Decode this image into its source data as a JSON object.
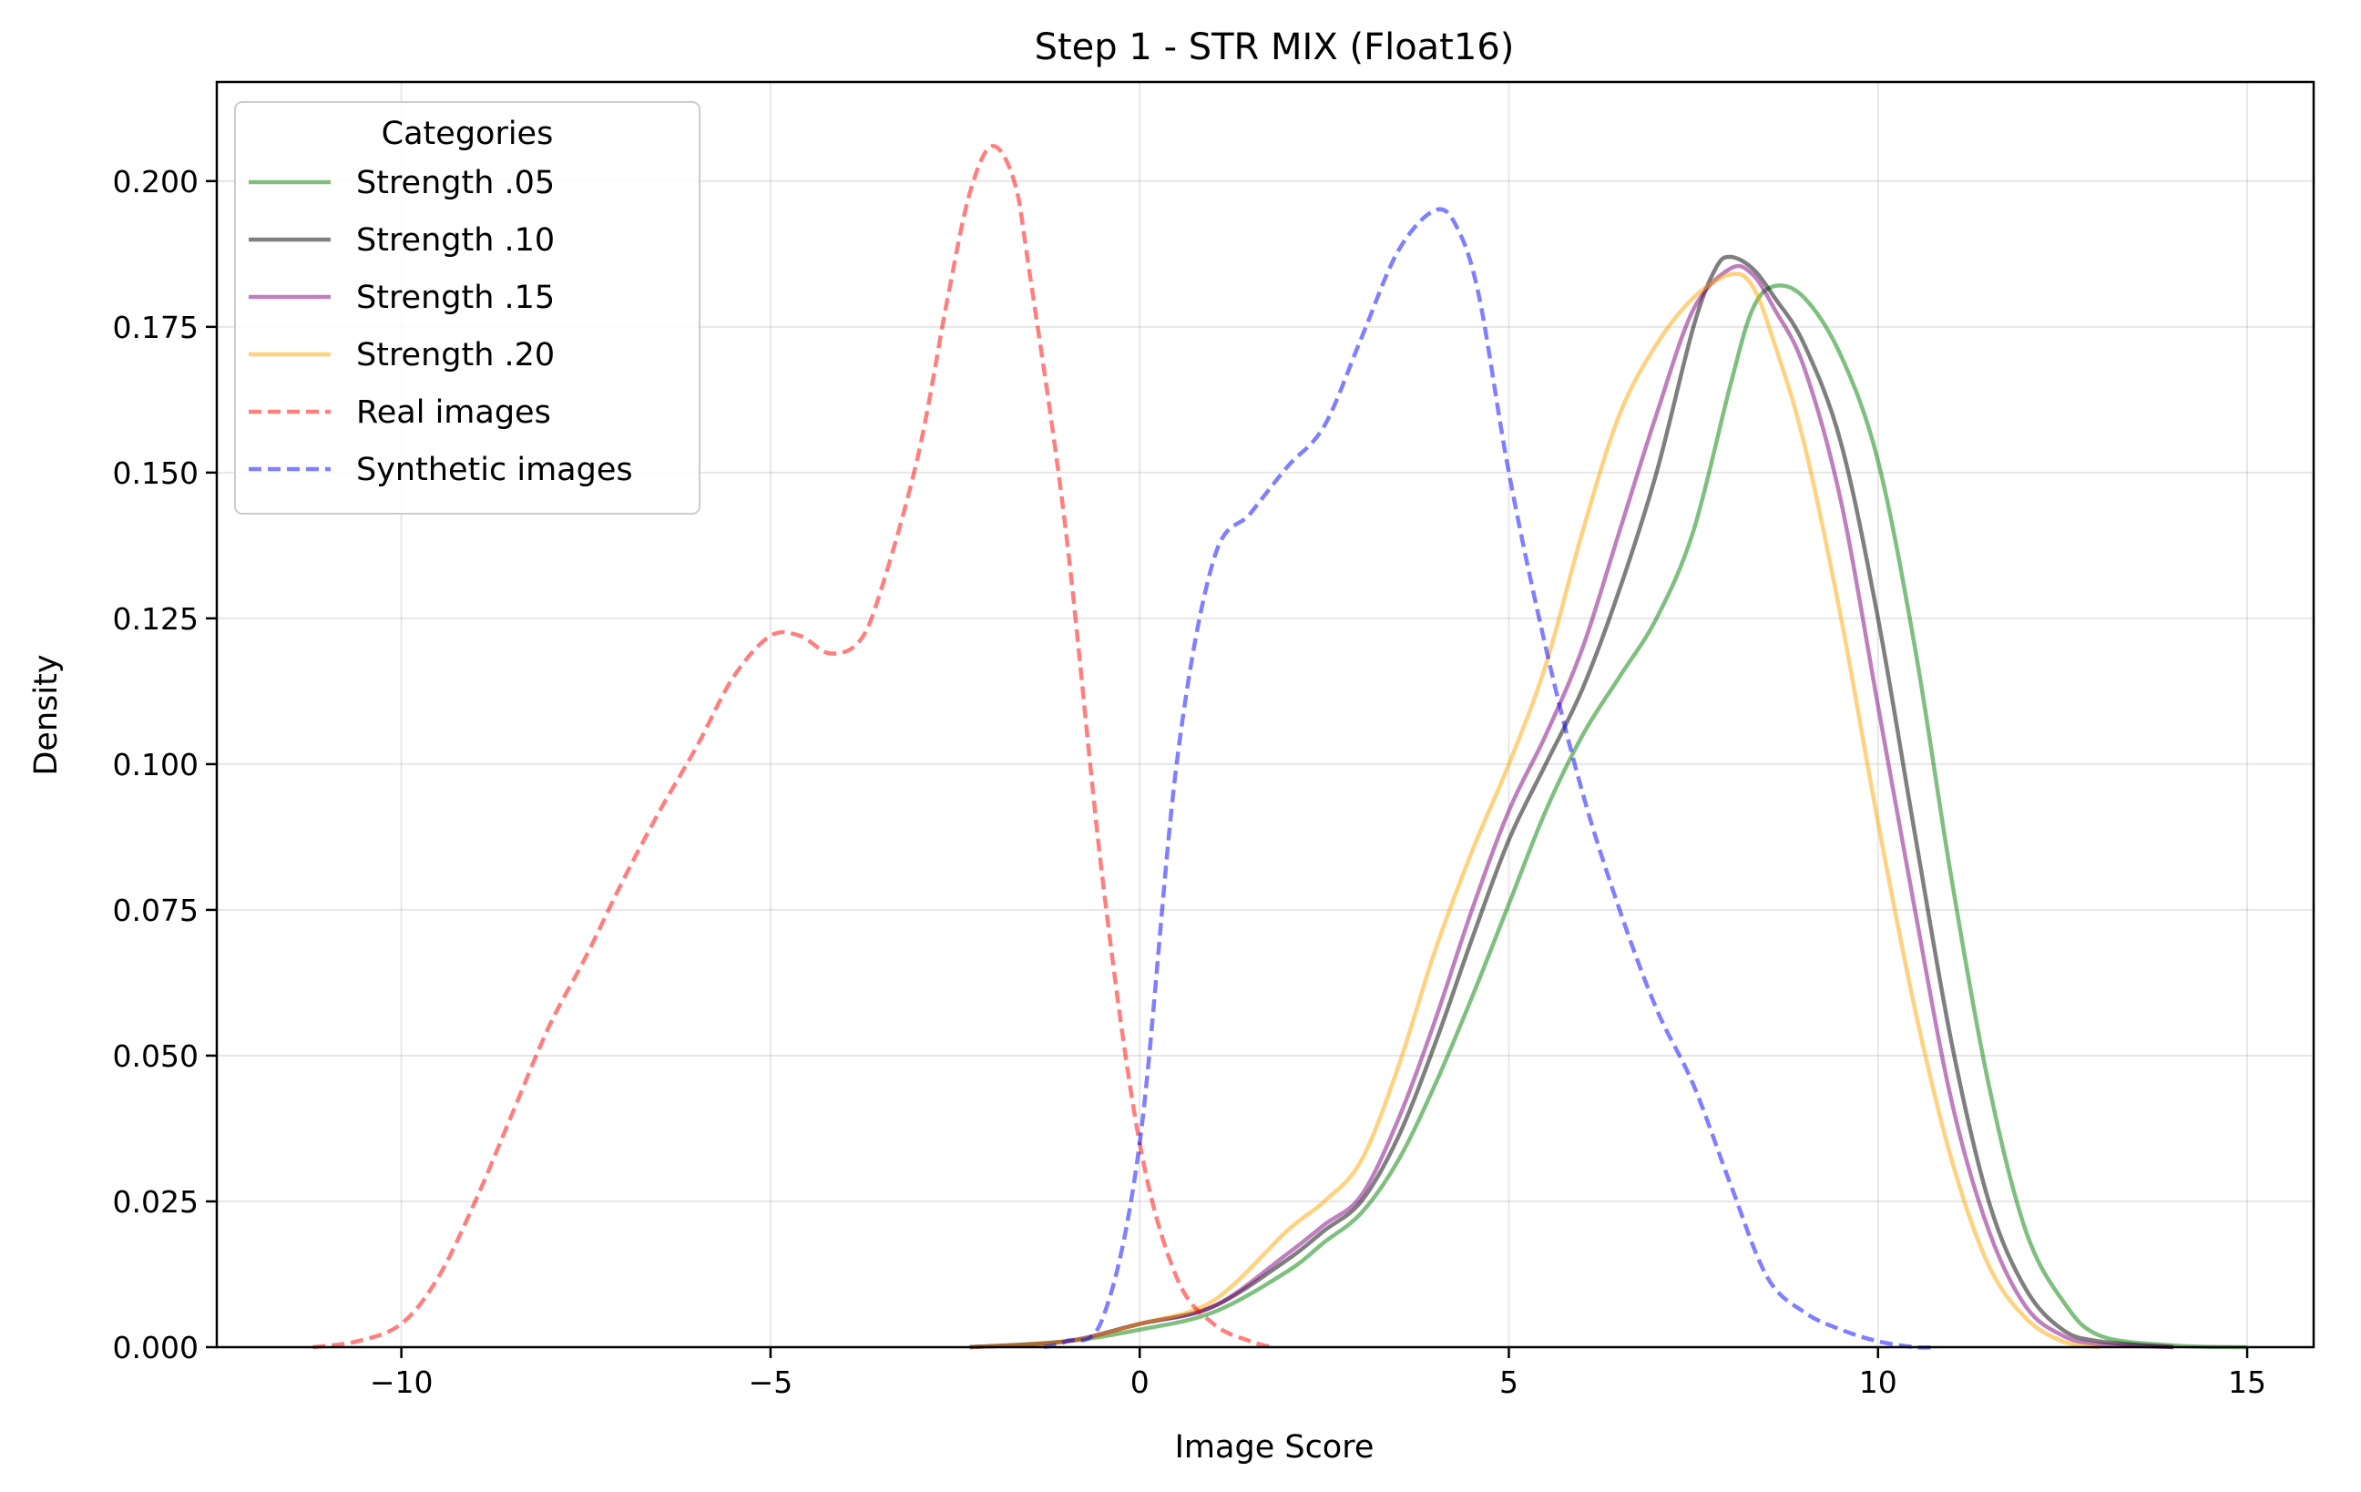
{
  "chart_data": {
    "type": "line",
    "title": "Step 1 - STR MIX (Float16)",
    "xlabel": "Image Score",
    "ylabel": "Density",
    "xlim": [
      -12.5,
      15.9
    ],
    "ylim": [
      0,
      0.217
    ],
    "xticks": [
      -10,
      -5,
      0,
      5,
      10,
      15
    ],
    "xtick_labels": [
      "−10",
      "−5",
      "0",
      "5",
      "10",
      "15"
    ],
    "yticks": [
      0,
      0.025,
      0.05,
      0.075,
      0.1,
      0.125,
      0.15,
      0.175,
      0.2
    ],
    "ytick_labels": [
      "0.000",
      "0.025",
      "0.050",
      "0.075",
      "0.100",
      "0.125",
      "0.150",
      "0.175",
      "0.200"
    ],
    "grid": true,
    "legend": {
      "title": "Categories",
      "position": "top-left"
    },
    "series": [
      {
        "name": "Strength .05",
        "color": "#008000",
        "style": "solid",
        "points": [
          [
            -2.3,
            0
          ],
          [
            -1,
            0.001
          ],
          [
            0,
            0.003
          ],
          [
            1,
            0.006
          ],
          [
            2,
            0.013
          ],
          [
            2.5,
            0.018
          ],
          [
            3,
            0.023
          ],
          [
            3.5,
            0.032
          ],
          [
            4,
            0.045
          ],
          [
            4.5,
            0.06
          ],
          [
            5,
            0.076
          ],
          [
            5.5,
            0.092
          ],
          [
            6,
            0.105
          ],
          [
            6.5,
            0.115
          ],
          [
            7,
            0.125
          ],
          [
            7.5,
            0.14
          ],
          [
            8,
            0.165
          ],
          [
            8.3,
            0.178
          ],
          [
            8.6,
            0.182
          ],
          [
            9,
            0.18
          ],
          [
            9.5,
            0.17
          ],
          [
            10,
            0.152
          ],
          [
            10.5,
            0.12
          ],
          [
            11,
            0.08
          ],
          [
            11.5,
            0.045
          ],
          [
            12,
            0.02
          ],
          [
            12.5,
            0.008
          ],
          [
            13,
            0.002
          ],
          [
            14,
            0.0003
          ],
          [
            15,
            0
          ]
        ]
      },
      {
        "name": "Strength .10",
        "color": "#000000",
        "style": "solid",
        "points": [
          [
            -2.3,
            0
          ],
          [
            -1,
            0.001
          ],
          [
            0,
            0.004
          ],
          [
            1,
            0.007
          ],
          [
            2,
            0.015
          ],
          [
            2.5,
            0.02
          ],
          [
            3,
            0.025
          ],
          [
            3.5,
            0.036
          ],
          [
            4,
            0.052
          ],
          [
            4.5,
            0.07
          ],
          [
            5,
            0.087
          ],
          [
            5.5,
            0.1
          ],
          [
            6,
            0.113
          ],
          [
            6.5,
            0.13
          ],
          [
            7,
            0.15
          ],
          [
            7.5,
            0.175
          ],
          [
            7.8,
            0.185
          ],
          [
            8,
            0.187
          ],
          [
            8.3,
            0.185
          ],
          [
            8.6,
            0.18
          ],
          [
            9,
            0.172
          ],
          [
            9.5,
            0.155
          ],
          [
            10,
            0.125
          ],
          [
            10.5,
            0.088
          ],
          [
            11,
            0.052
          ],
          [
            11.5,
            0.025
          ],
          [
            12,
            0.01
          ],
          [
            12.5,
            0.003
          ],
          [
            13,
            0.001
          ],
          [
            14,
            0
          ]
        ]
      },
      {
        "name": "Strength .15",
        "color": "#800080",
        "style": "solid",
        "points": [
          [
            -2.3,
            0
          ],
          [
            -1,
            0.001
          ],
          [
            0,
            0.004
          ],
          [
            1,
            0.007
          ],
          [
            2,
            0.016
          ],
          [
            2.5,
            0.021
          ],
          [
            3,
            0.026
          ],
          [
            3.5,
            0.039
          ],
          [
            4,
            0.056
          ],
          [
            4.5,
            0.075
          ],
          [
            5,
            0.092
          ],
          [
            5.5,
            0.105
          ],
          [
            6,
            0.12
          ],
          [
            6.5,
            0.14
          ],
          [
            7,
            0.16
          ],
          [
            7.5,
            0.178
          ],
          [
            8,
            0.185
          ],
          [
            8.3,
            0.184
          ],
          [
            8.6,
            0.178
          ],
          [
            9,
            0.168
          ],
          [
            9.5,
            0.145
          ],
          [
            10,
            0.11
          ],
          [
            10.5,
            0.075
          ],
          [
            11,
            0.042
          ],
          [
            11.5,
            0.02
          ],
          [
            12,
            0.007
          ],
          [
            12.5,
            0.002
          ],
          [
            13,
            0.0005
          ],
          [
            14,
            0
          ]
        ]
      },
      {
        "name": "Strength .20",
        "color": "#FFA500",
        "style": "solid",
        "points": [
          [
            -2.3,
            0
          ],
          [
            -1,
            0.001
          ],
          [
            0,
            0.004
          ],
          [
            1,
            0.008
          ],
          [
            2,
            0.02
          ],
          [
            2.5,
            0.025
          ],
          [
            3,
            0.032
          ],
          [
            3.5,
            0.048
          ],
          [
            4,
            0.068
          ],
          [
            4.5,
            0.085
          ],
          [
            5,
            0.1
          ],
          [
            5.5,
            0.117
          ],
          [
            6,
            0.14
          ],
          [
            6.5,
            0.16
          ],
          [
            7,
            0.172
          ],
          [
            7.5,
            0.18
          ],
          [
            8,
            0.184
          ],
          [
            8.3,
            0.182
          ],
          [
            8.6,
            0.172
          ],
          [
            9,
            0.155
          ],
          [
            9.5,
            0.125
          ],
          [
            10,
            0.09
          ],
          [
            10.5,
            0.058
          ],
          [
            11,
            0.032
          ],
          [
            11.5,
            0.014
          ],
          [
            12,
            0.005
          ],
          [
            12.5,
            0.001
          ],
          [
            13,
            0
          ]
        ]
      },
      {
        "name": "Real images",
        "color": "#FF0000",
        "style": "dashed",
        "points": [
          [
            -11.2,
            0
          ],
          [
            -10.6,
            0.001
          ],
          [
            -10,
            0.004
          ],
          [
            -9.5,
            0.012
          ],
          [
            -9,
            0.025
          ],
          [
            -8.5,
            0.04
          ],
          [
            -8,
            0.055
          ],
          [
            -7.5,
            0.067
          ],
          [
            -7,
            0.08
          ],
          [
            -6.5,
            0.092
          ],
          [
            -6,
            0.103
          ],
          [
            -5.5,
            0.115
          ],
          [
            -5,
            0.122
          ],
          [
            -4.6,
            0.122
          ],
          [
            -4.2,
            0.119
          ],
          [
            -3.8,
            0.121
          ],
          [
            -3.5,
            0.13
          ],
          [
            -3,
            0.153
          ],
          [
            -2.6,
            0.18
          ],
          [
            -2.3,
            0.198
          ],
          [
            -2,
            0.206
          ],
          [
            -1.7,
            0.2
          ],
          [
            -1.5,
            0.185
          ],
          [
            -1,
            0.14
          ],
          [
            -0.5,
            0.08
          ],
          [
            0,
            0.035
          ],
          [
            0.5,
            0.012
          ],
          [
            1,
            0.004
          ],
          [
            1.5,
            0.001
          ],
          [
            1.8,
            0
          ]
        ]
      },
      {
        "name": "Synthetic images",
        "color": "#0000FF",
        "style": "dashed",
        "points": [
          [
            -1.3,
            0
          ],
          [
            -1,
            0.001
          ],
          [
            -0.5,
            0.005
          ],
          [
            0,
            0.035
          ],
          [
            0.5,
            0.1
          ],
          [
            1,
            0.135
          ],
          [
            1.5,
            0.143
          ],
          [
            2,
            0.151
          ],
          [
            2.5,
            0.158
          ],
          [
            3,
            0.173
          ],
          [
            3.5,
            0.188
          ],
          [
            4,
            0.195
          ],
          [
            4.3,
            0.192
          ],
          [
            4.6,
            0.18
          ],
          [
            5,
            0.15
          ],
          [
            5.5,
            0.12
          ],
          [
            6,
            0.095
          ],
          [
            6.5,
            0.075
          ],
          [
            7,
            0.058
          ],
          [
            7.5,
            0.045
          ],
          [
            8,
            0.028
          ],
          [
            8.5,
            0.012
          ],
          [
            9,
            0.006
          ],
          [
            9.5,
            0.003
          ],
          [
            10,
            0.001
          ],
          [
            10.5,
            0
          ],
          [
            10.8,
            0
          ]
        ]
      }
    ]
  }
}
